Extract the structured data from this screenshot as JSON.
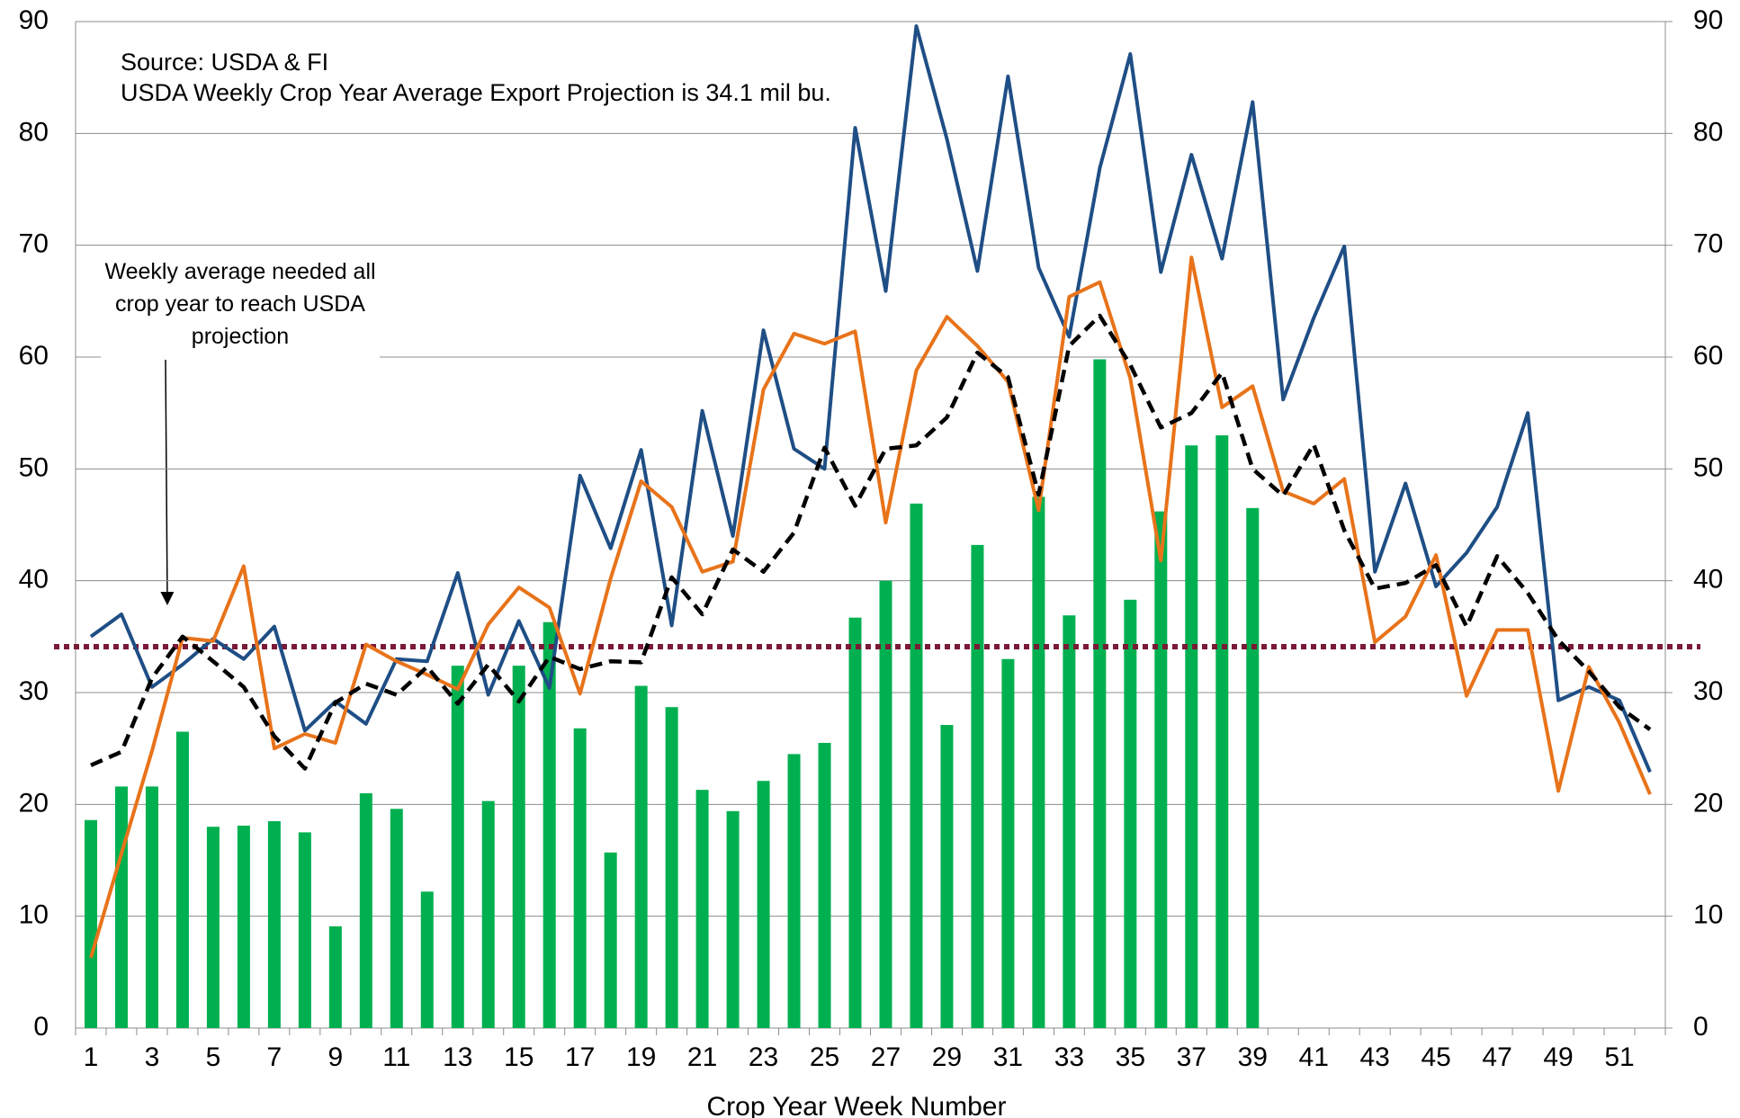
{
  "chart_data": {
    "type": "combo",
    "x_label": "Crop Year Week Number",
    "annotations": [
      "Source: USDA & FI",
      "USDA Weekly Crop Year Average Export Projection is 34.1 mil bu.",
      "Weekly average needed all crop year to reach USDA projection"
    ],
    "categories": [
      1,
      null,
      3,
      null,
      5,
      null,
      7,
      null,
      9,
      null,
      11,
      null,
      13,
      null,
      15,
      null,
      17,
      null,
      19,
      null,
      21,
      null,
      23,
      null,
      25,
      null,
      27,
      null,
      29,
      null,
      31,
      null,
      33,
      null,
      35,
      null,
      37,
      null,
      39,
      null,
      41,
      null,
      43,
      null,
      45,
      null,
      47,
      null,
      49,
      null,
      51,
      null
    ],
    "series": [
      {
        "type": "bar",
        "color": "#00b050",
        "values": [
          18.6,
          21.6,
          21.6,
          26.5,
          18,
          18.1,
          18.5,
          17.5,
          9.1,
          21,
          19.6,
          12.2,
          32.4,
          20.3,
          32.4,
          36.3,
          26.8,
          15.7,
          30.6,
          28.7,
          21.3,
          19.4,
          22.1,
          24.5,
          25.5,
          36.7,
          40,
          46.9,
          27.1,
          43.2,
          33,
          47.5,
          36.9,
          59.8,
          38.3,
          46.2,
          52.1,
          53,
          46.5,
          null,
          null,
          null,
          null,
          null,
          null,
          null,
          null,
          null,
          null,
          null,
          null,
          null
        ]
      },
      {
        "type": "line",
        "color": "#1f4e85",
        "values": [
          35,
          37,
          30.5,
          32.5,
          34.8,
          33,
          35.9,
          26.6,
          29.2,
          27.2,
          33,
          32.8,
          40.7,
          29.8,
          36.4,
          30.4,
          49.4,
          42.9,
          51.7,
          36,
          55.2,
          44,
          62.4,
          51.8,
          50,
          80.5,
          65.9,
          89.6,
          79.5,
          67.7,
          85.1,
          68,
          61.8,
          76.9,
          87.1,
          67.6,
          78.1,
          68.8,
          82.8,
          56.2,
          63.5,
          69.9,
          40.8,
          48.7,
          39.5,
          42.5,
          46.6,
          55,
          29.3,
          30.5,
          29.3,
          22.9
        ]
      },
      {
        "type": "line",
        "color": "#e8731a",
        "values": [
          6.3,
          15.6,
          24.8,
          34.9,
          34.6,
          41.3,
          25,
          26.3,
          25.5,
          34.3,
          32.8,
          31.6,
          30.3,
          36.1,
          39.4,
          37.6,
          29.9,
          40.2,
          48.9,
          46.6,
          40.8,
          41.7,
          57.1,
          62.1,
          61.2,
          62.3,
          45.2,
          58.8,
          63.6,
          61,
          57.8,
          46.3,
          65.4,
          66.7,
          58.1,
          41.8,
          68.9,
          55.5,
          57.4,
          48,
          46.9,
          49.1,
          34.5,
          36.8,
          42.3,
          29.7,
          35.6,
          35.6,
          21.2,
          32.3,
          27.3,
          20.9
        ]
      },
      {
        "type": "line",
        "color": "#000000",
        "dashed": true,
        "values": [
          23.5,
          24.7,
          31.3,
          35,
          32.8,
          30.5,
          26.1,
          23.2,
          29.1,
          30.8,
          29.8,
          32.3,
          29,
          32.5,
          29.2,
          33.2,
          32.1,
          32.8,
          32.7,
          40.3,
          37,
          42.8,
          40.8,
          44.3,
          51.9,
          46.7,
          51.8,
          52.1,
          54.6,
          60.4,
          58.2,
          47.7,
          61,
          63.7,
          59.3,
          53.7,
          55,
          58.6,
          50,
          47.6,
          52.2,
          44.5,
          39.3,
          39.8,
          41.4,
          35.9,
          42.2,
          38.9,
          34.7,
          31.9,
          28.7,
          26.7
        ]
      }
    ],
    "reference_line": {
      "value": 34.1,
      "color": "#7b1a36"
    },
    "ylim": [
      0,
      90
    ],
    "yticks": [
      0,
      10,
      20,
      30,
      40,
      50,
      60,
      70,
      80,
      90
    ],
    "y2lim": [
      0,
      90
    ],
    "y2ticks": [
      0,
      10,
      20,
      30,
      40,
      50,
      60,
      70,
      80,
      90
    ],
    "grid": true
  }
}
